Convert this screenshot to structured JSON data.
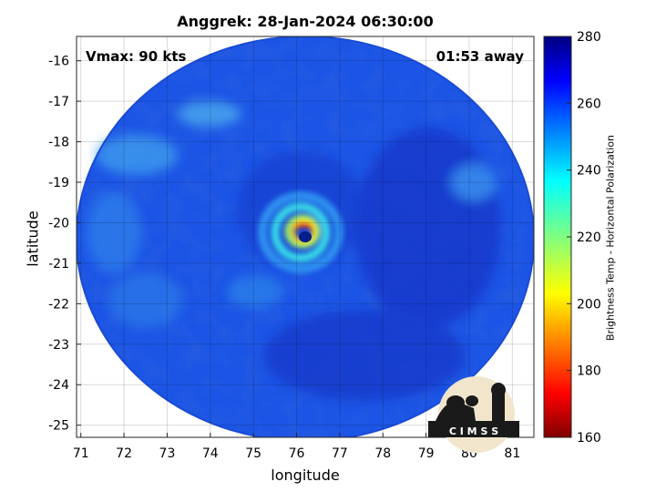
{
  "title": "Anggrek: 28-Jan-2024 06:30:00",
  "vmax_label": "Vmax: 90 kts",
  "time_away_label": "01:53 away",
  "xlabel": "longitude",
  "ylabel": "latitude",
  "colorbar_label": "Brightness Temp - Horizontal Polarization",
  "logo_text": "C I M S S",
  "chart_data": {
    "type": "heatmap",
    "x_ticks": [
      "71",
      "72",
      "73",
      "74",
      "75",
      "76",
      "77",
      "78",
      "79",
      "80",
      "81"
    ],
    "y_ticks": [
      "-16",
      "-17",
      "-18",
      "-19",
      "-20",
      "-21",
      "-22",
      "-23",
      "-24",
      "-25"
    ],
    "xlim": [
      70.9,
      81.5
    ],
    "ylim": [
      -25.3,
      -15.4
    ],
    "colorbar": {
      "ticks": [
        "280",
        "260",
        "240",
        "220",
        "200",
        "180",
        "160"
      ],
      "range": [
        160,
        280
      ],
      "colormap": "jet"
    },
    "eye_center": {
      "lon": 76.2,
      "lat": -20.4
    },
    "scan_center": {
      "lon": 76.2,
      "lat": -20.2
    },
    "grid": true
  }
}
